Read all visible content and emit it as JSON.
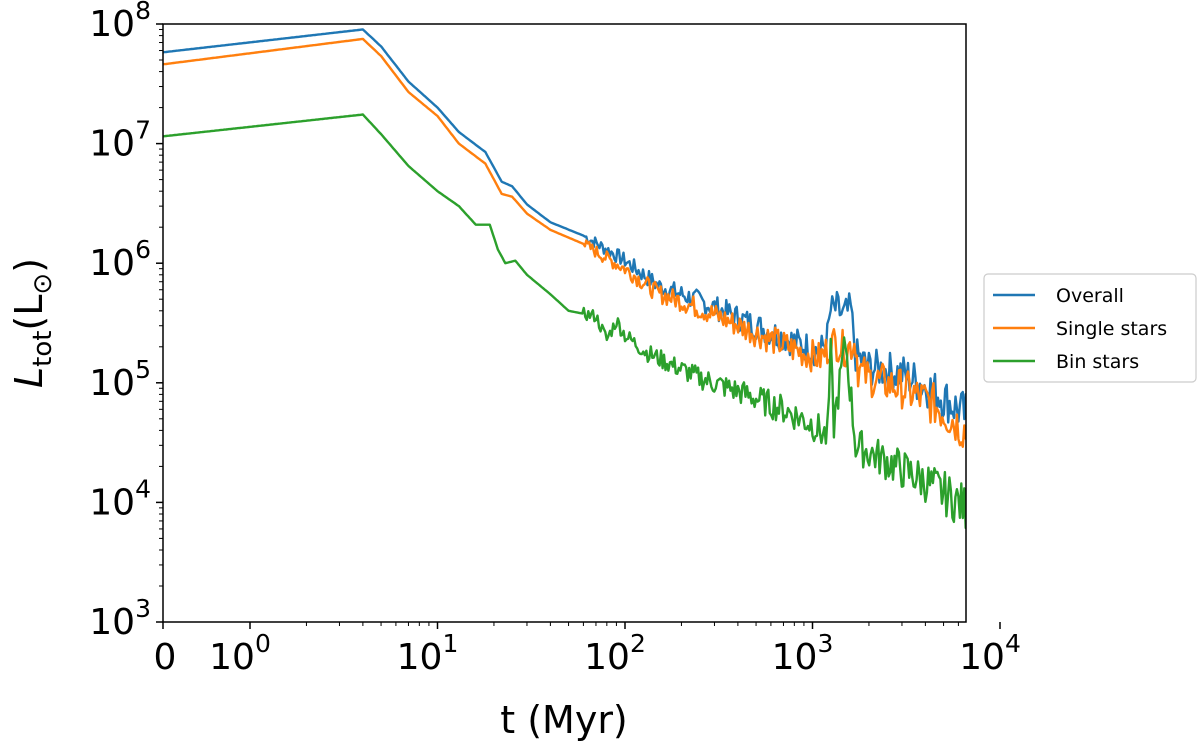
{
  "chart_data": {
    "type": "line",
    "xscale": "symlog",
    "yscale": "log",
    "xlim": [
      0,
      13000
    ],
    "ylim": [
      1000,
      100000000
    ],
    "xlabel": "t (Myr)",
    "ylabel": "L_tot(L_⊙)",
    "ylabel_parts": {
      "base": "L",
      "sub": "tot",
      "unit_open": "(L",
      "unit_sub": "⊙",
      "unit_close": ")"
    },
    "x_ticks": [
      {
        "value": 0,
        "label": "0"
      },
      {
        "value": 1,
        "base": "10",
        "exp": "0"
      },
      {
        "value": 10,
        "base": "10",
        "exp": "1"
      },
      {
        "value": 100,
        "base": "10",
        "exp": "2"
      },
      {
        "value": 1000,
        "base": "10",
        "exp": "3"
      },
      {
        "value": 10000,
        "base": "10",
        "exp": "4"
      }
    ],
    "y_ticks": [
      {
        "value": 1000,
        "base": "10",
        "exp": "3"
      },
      {
        "value": 10000,
        "base": "10",
        "exp": "4"
      },
      {
        "value": 100000,
        "base": "10",
        "exp": "5"
      },
      {
        "value": 1000000,
        "base": "10",
        "exp": "6"
      },
      {
        "value": 10000000,
        "base": "10",
        "exp": "7"
      },
      {
        "value": 100000000,
        "base": "10",
        "exp": "8"
      }
    ],
    "grid": false,
    "legend_position": "outside-right",
    "series": [
      {
        "name": "Overall",
        "color": "#1f77b4",
        "points": [
          [
            0,
            58000000.0
          ],
          [
            4,
            90000000.0
          ],
          [
            5,
            65000000.0
          ],
          [
            7,
            33000000.0
          ],
          [
            10,
            20000000.0
          ],
          [
            13,
            12500000.0
          ],
          [
            18,
            8500000.0
          ],
          [
            22,
            4800000.0
          ],
          [
            25,
            4400000.0
          ],
          [
            30,
            3100000.0
          ],
          [
            40,
            2200000.0
          ],
          [
            60,
            1700000.0
          ],
          [
            80,
            1300000.0
          ],
          [
            100,
            1050000.0
          ],
          [
            150,
            650000.0
          ],
          [
            200,
            550000.0
          ],
          [
            300,
            430000.0
          ],
          [
            500,
            300000.0
          ],
          [
            800,
            220000.0
          ],
          [
            1100,
            180000.0
          ],
          [
            1200,
            240000.0
          ],
          [
            1250,
            400000.0
          ],
          [
            1350,
            420000.0
          ],
          [
            1450,
            360000.0
          ],
          [
            1600,
            410000.0
          ],
          [
            1700,
            170000.0
          ],
          [
            2000,
            135000.0
          ],
          [
            3000,
            120000.0
          ],
          [
            4500,
            85000.0
          ],
          [
            6000,
            60000.0
          ],
          [
            8000,
            43000.0
          ],
          [
            10000,
            32000.0
          ],
          [
            13000,
            28000.0
          ]
        ]
      },
      {
        "name": "Single stars",
        "color": "#ff7f0e",
        "points": [
          [
            0,
            46000000.0
          ],
          [
            4,
            75000000.0
          ],
          [
            5,
            54000000.0
          ],
          [
            7,
            27000000.0
          ],
          [
            10,
            17000000.0
          ],
          [
            13,
            10000000.0
          ],
          [
            18,
            6800000.0
          ],
          [
            22,
            3800000.0
          ],
          [
            25,
            3600000.0
          ],
          [
            30,
            2600000.0
          ],
          [
            40,
            1900000.0
          ],
          [
            60,
            1450000.0
          ],
          [
            80,
            1100000.0
          ],
          [
            100,
            900000.0
          ],
          [
            150,
            560000.0
          ],
          [
            200,
            480000.0
          ],
          [
            300,
            370000.0
          ],
          [
            500,
            260000.0
          ],
          [
            800,
            190000.0
          ],
          [
            1100,
            160000.0
          ],
          [
            1200,
            190000.0
          ],
          [
            1300,
            220000.0
          ],
          [
            1500,
            190000.0
          ],
          [
            1700,
            220000.0
          ],
          [
            1750,
            130000.0
          ],
          [
            2000,
            110000.0
          ],
          [
            3000,
            90000.0
          ],
          [
            4500,
            65000.0
          ],
          [
            6000,
            45000.0
          ],
          [
            8000,
            30000.0
          ],
          [
            10000,
            20000.0
          ],
          [
            13000,
            15000.0
          ]
        ]
      },
      {
        "name": "Bin stars",
        "color": "#2ca02c",
        "points": [
          [
            0,
            11500000.0
          ],
          [
            4,
            17500000.0
          ],
          [
            5,
            12000000.0
          ],
          [
            7,
            6500000.0
          ],
          [
            10,
            4000000.0
          ],
          [
            13,
            3000000.0
          ],
          [
            16,
            2100000.0
          ],
          [
            19,
            2100000.0
          ],
          [
            21,
            1300000.0
          ],
          [
            23,
            1000000.0
          ],
          [
            26,
            1050000.0
          ],
          [
            30,
            800000.0
          ],
          [
            40,
            550000.0
          ],
          [
            50,
            400000.0
          ],
          [
            70,
            360000.0
          ],
          [
            80,
            230000.0
          ],
          [
            90,
            330000.0
          ],
          [
            100,
            250000.0
          ],
          [
            130,
            180000.0
          ],
          [
            180,
            140000.0
          ],
          [
            250,
            110000.0
          ],
          [
            400,
            85000.0
          ],
          [
            700,
            60000.0
          ],
          [
            1000,
            45000.0
          ],
          [
            1200,
            35000.0
          ],
          [
            1250,
            170000.0
          ],
          [
            1300,
            45000.0
          ],
          [
            1500,
            220000.0
          ],
          [
            1700,
            30000.0
          ],
          [
            2500,
            22000.0
          ],
          [
            4000,
            15000.0
          ],
          [
            6000,
            10000.0
          ],
          [
            8000,
            7000.0
          ],
          [
            10000,
            5000.0
          ],
          [
            13000,
            4000.0
          ]
        ]
      }
    ]
  }
}
